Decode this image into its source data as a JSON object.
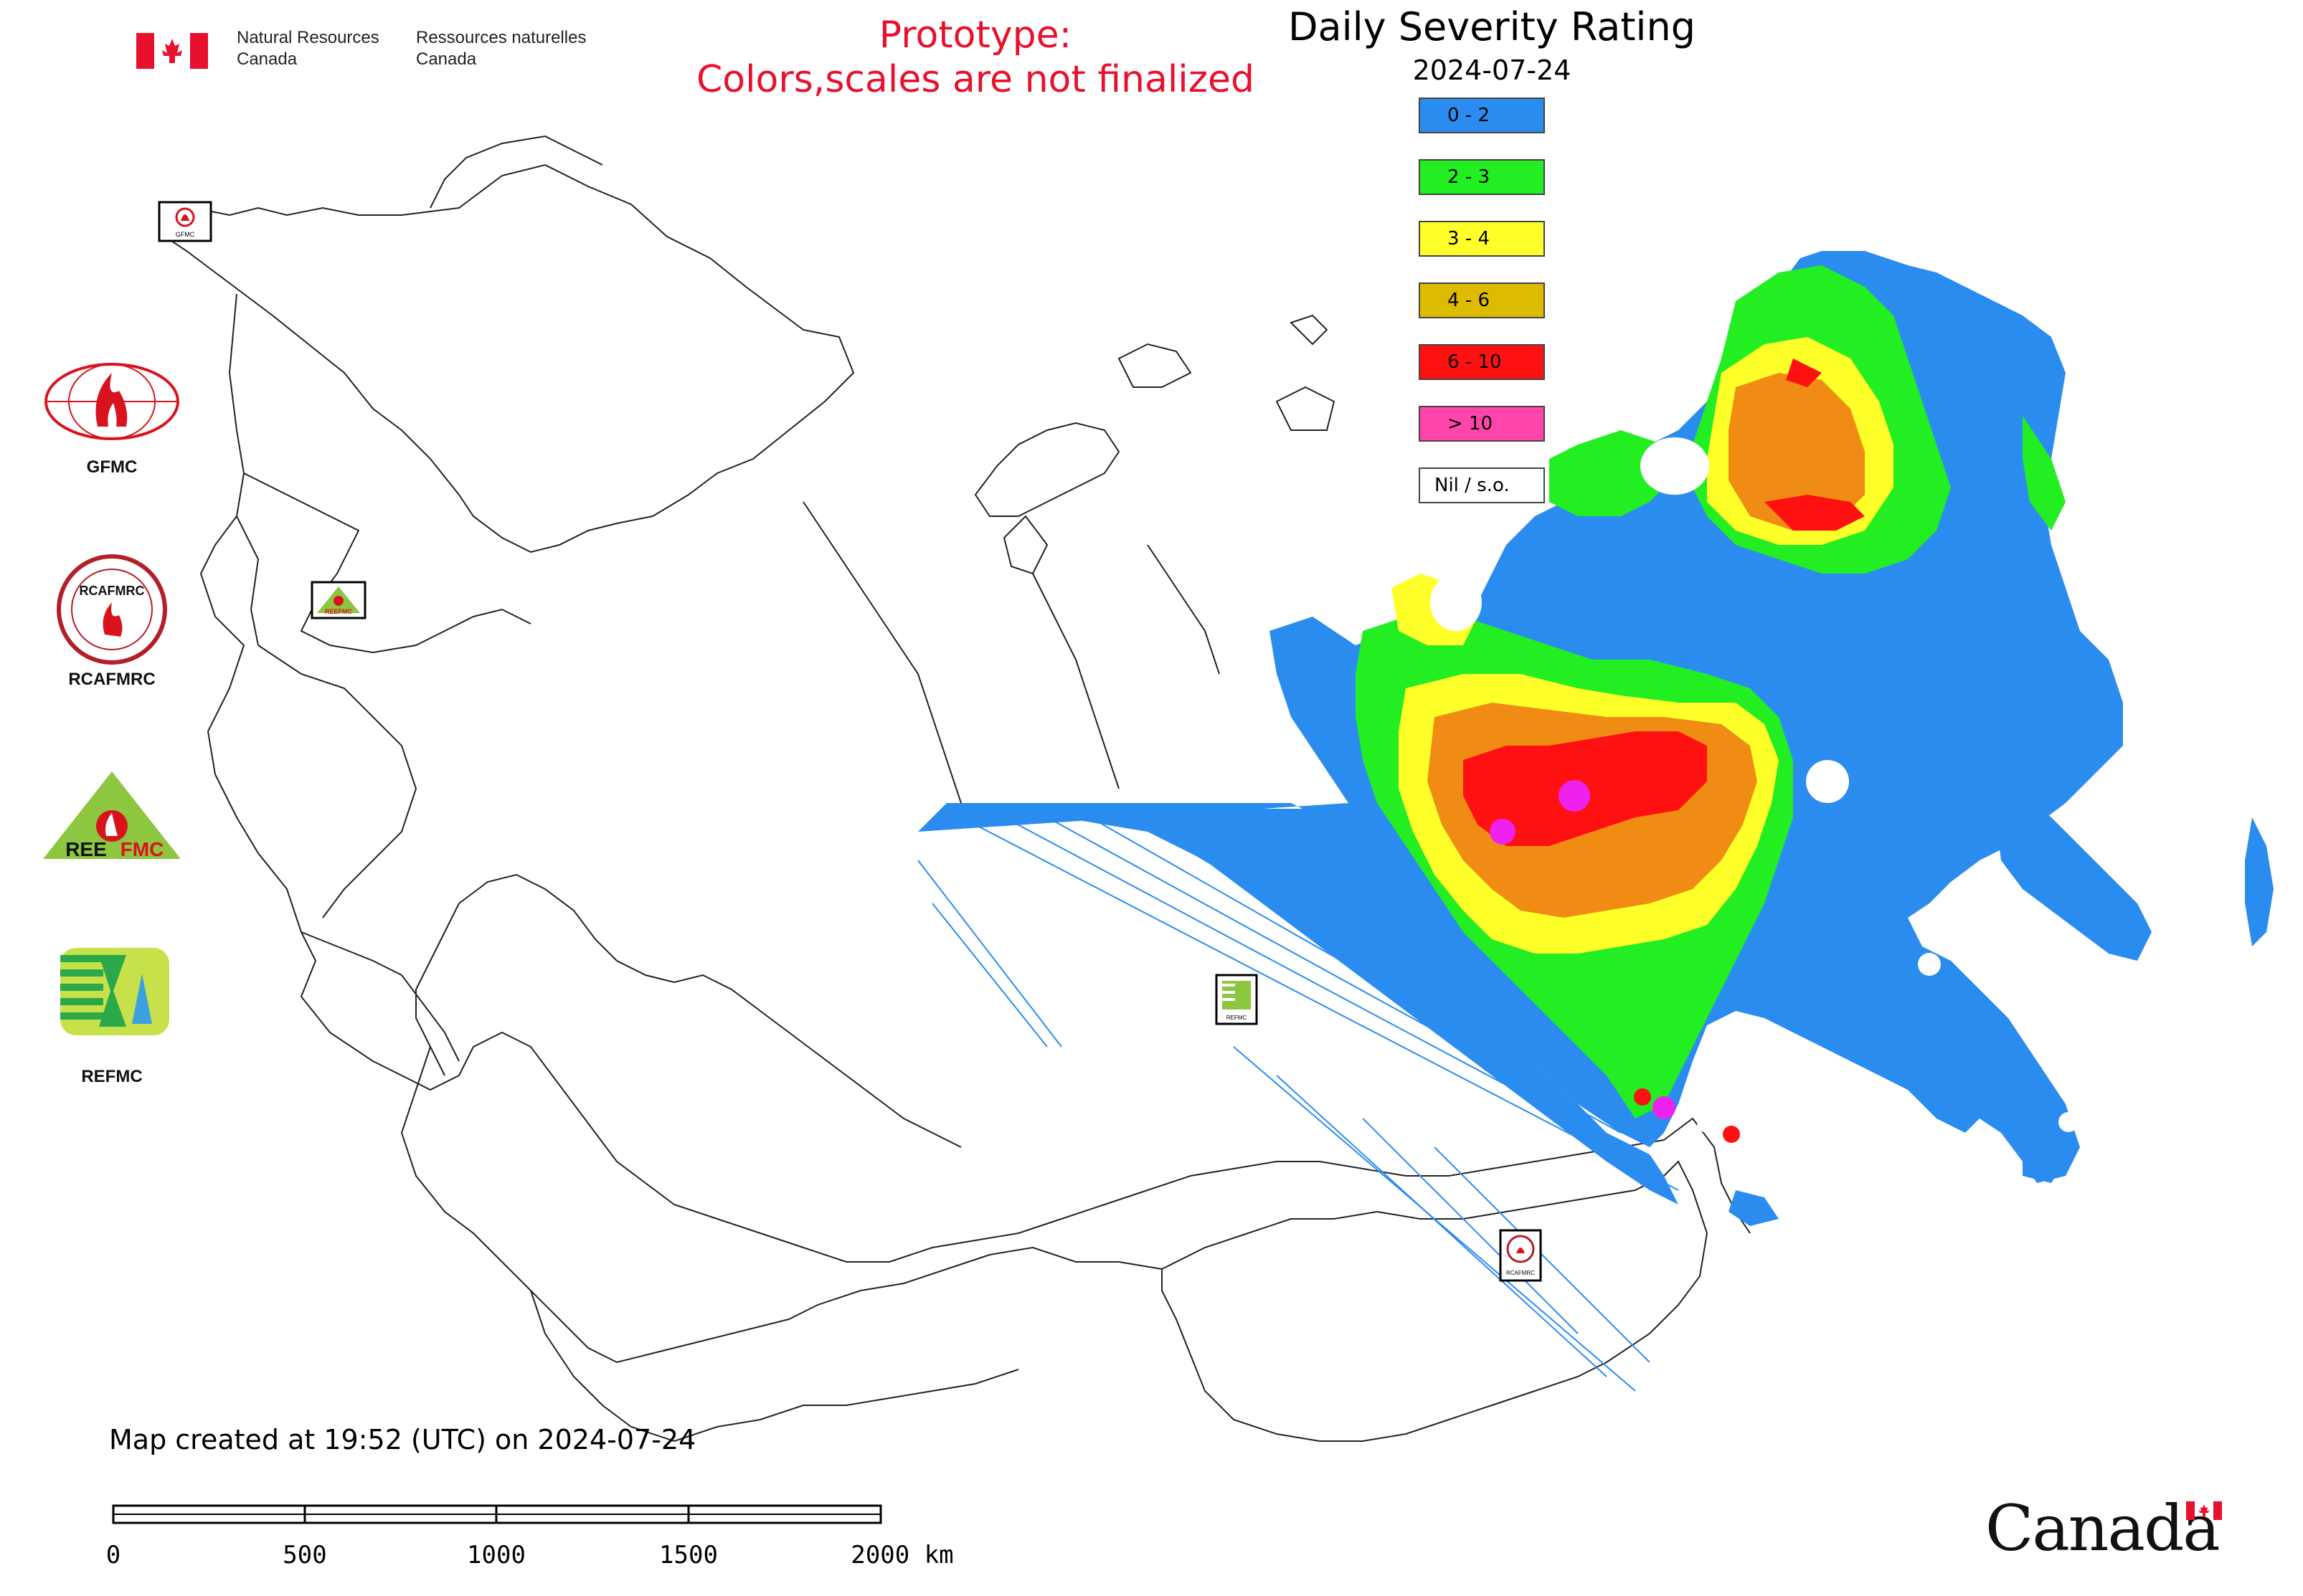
{
  "header": {
    "agency_en_line1": "Natural Resources",
    "agency_en_line2": "Canada",
    "agency_fr_line1": "Ressources naturelles",
    "agency_fr_line2": "Canada",
    "prototype_line1": "Prototype:",
    "prototype_line2": "Colors,scales are not finalized"
  },
  "legend": {
    "title": "Daily Severity Rating",
    "date": "2024-07-24",
    "items": [
      {
        "label": "0 - 2",
        "color": "#2b8cf0"
      },
      {
        "label": "2 - 3",
        "color": "#22ee22"
      },
      {
        "label": "3 - 4",
        "color": "#ffff2a"
      },
      {
        "label": "4 - 6",
        "color": "#ddbb00"
      },
      {
        "label": "6 - 10",
        "color": "#ff1111"
      },
      {
        "label": "> 10",
        "color": "#ff44aa"
      },
      {
        "label": "Nil / s.o.",
        "color": "#ffffff"
      }
    ]
  },
  "logos": {
    "gfmc": "GFMC",
    "rcafmrc": "RCAFMRC",
    "reefmc": "REEFMC",
    "refmc": "REFMC",
    "rcafmrc_inner": "RCAFMRC",
    "reefmc_left": "REE",
    "reefmc_right": "FMC"
  },
  "map_markers": {
    "gfmc": "GFMC",
    "reefmc": "REEFMC",
    "refmc": "REFMC",
    "rcafmrc": "RCAFMRC"
  },
  "footer": {
    "created": "Map created at 19:52 (UTC) on 2024-07-24",
    "scale_ticks": [
      "0",
      "500",
      "1000",
      "1500",
      "2000 km"
    ]
  },
  "wordmark": {
    "text": "Canada"
  },
  "colors": {
    "water_blue": "#2b8cf0",
    "green": "#22ee22",
    "yellow": "#ffff2a",
    "orange": "#f08c14",
    "red": "#ff1111",
    "magenta": "#ee22ee",
    "alert_red": "#e8112d"
  }
}
